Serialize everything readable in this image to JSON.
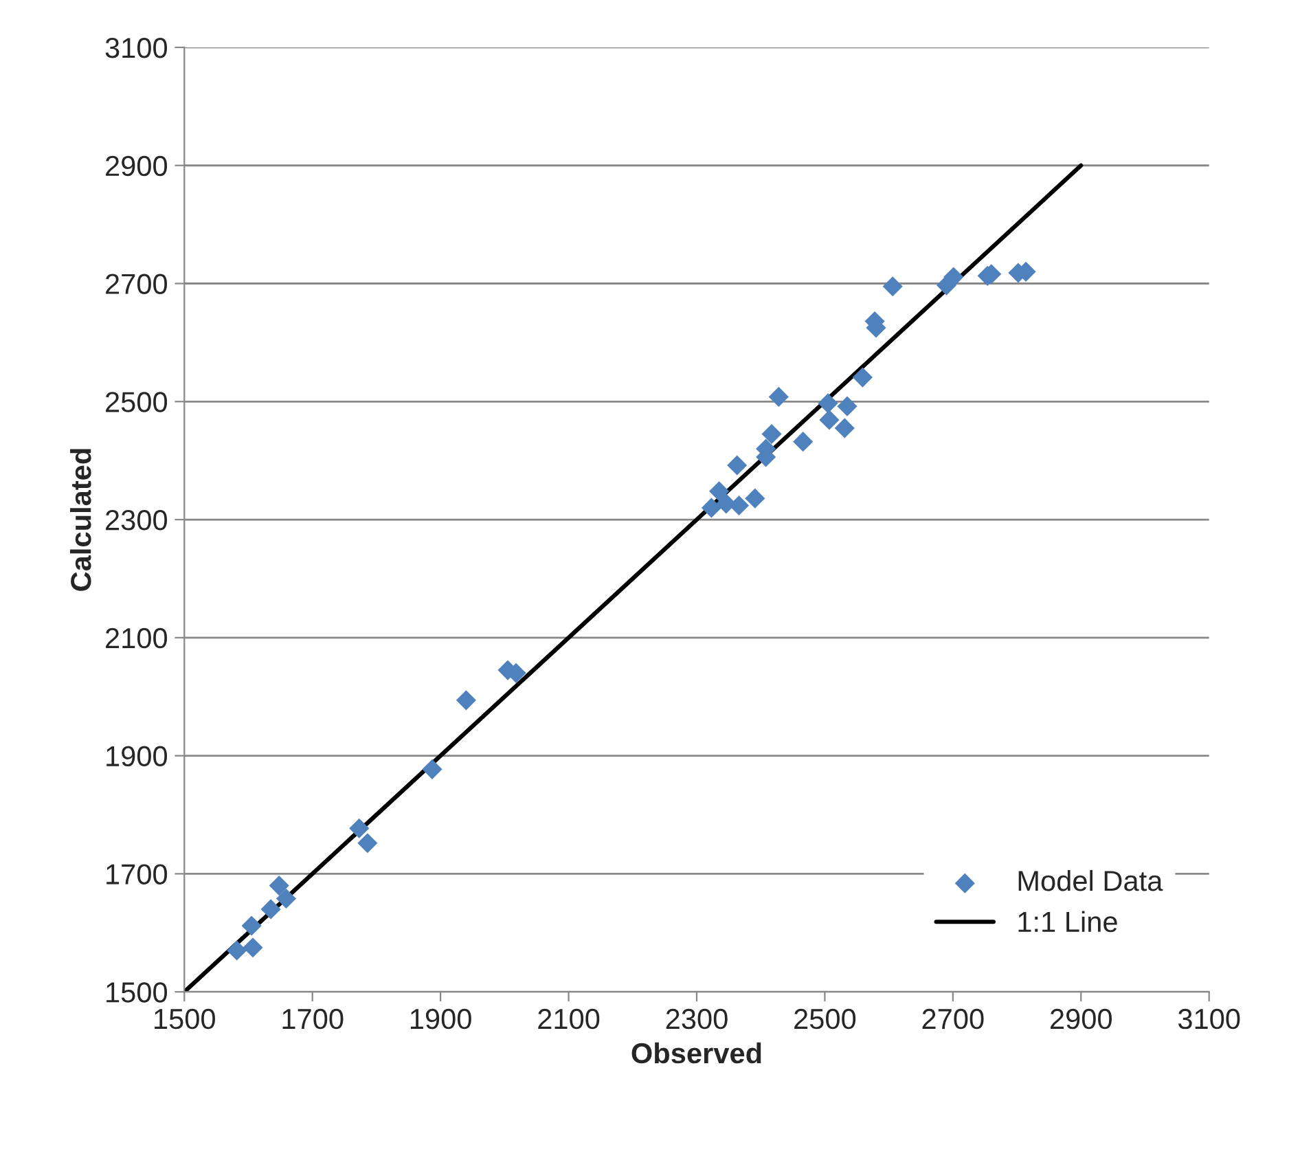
{
  "chart_data": {
    "type": "scatter",
    "xlabel": "Observed",
    "ylabel": "Calculated",
    "xlim": [
      1500,
      3100
    ],
    "ylim": [
      1500,
      3100
    ],
    "xticks": [
      1500,
      1700,
      1900,
      2100,
      2300,
      2500,
      2700,
      2900,
      3100
    ],
    "yticks": [
      1500,
      1700,
      1900,
      2100,
      2300,
      2500,
      2700,
      2900,
      3100
    ],
    "grid": "y",
    "legend": "bottom right",
    "series": [
      {
        "name": "Model Data",
        "marker": "diamond",
        "color": "#4f81bd",
        "x": [
          1582,
          1607,
          1605,
          1635,
          1648,
          1659,
          1773,
          1786,
          1887,
          1940,
          2005,
          2018,
          2323,
          2335,
          2346,
          2366,
          2391,
          2363,
          2408,
          2408,
          2417,
          2428,
          2466,
          2505,
          2507,
          2535,
          2531,
          2559,
          2580,
          2578,
          2606,
          2690,
          2701,
          2754,
          2760,
          2802,
          2814
        ],
        "values": [
          1570,
          1575,
          1612,
          1640,
          1680,
          1658,
          1777,
          1752,
          1877,
          1994,
          2045,
          2040,
          2320,
          2348,
          2327,
          2324,
          2336,
          2392,
          2420,
          2406,
          2445,
          2508,
          2432,
          2497,
          2469,
          2492,
          2455,
          2541,
          2625,
          2636,
          2695,
          2697,
          2711,
          2713,
          2716,
          2718,
          2720
        ]
      },
      {
        "name": "1:1 Line",
        "type": "line",
        "marker": "none",
        "line_style": "solid",
        "color": "#000000",
        "x": [
          1500,
          2900
        ],
        "values": [
          1500,
          2900
        ]
      }
    ]
  }
}
